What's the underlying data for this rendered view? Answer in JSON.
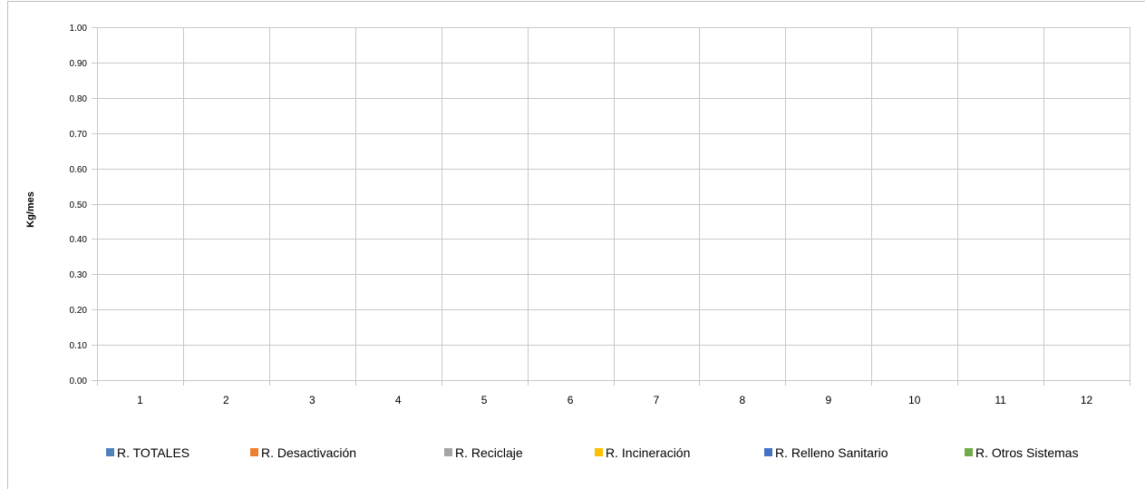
{
  "chart_data": {
    "type": "bar",
    "title": "",
    "xlabel": "",
    "ylabel": "Kg/mes",
    "ylim": [
      0,
      1.0
    ],
    "y_ticks": [
      "0.00",
      "0.10",
      "0.20",
      "0.30",
      "0.40",
      "0.50",
      "0.60",
      "0.70",
      "0.80",
      "0.90",
      "1.00"
    ],
    "categories": [
      "1",
      "2",
      "3",
      "4",
      "5",
      "6",
      "7",
      "8",
      "9",
      "10",
      "11",
      "12"
    ],
    "grid": true,
    "legend_position": "bottom",
    "series": [
      {
        "name": "R. TOTALES",
        "color": "#4f81bd",
        "values": [
          0,
          0,
          0,
          0,
          0,
          0,
          0,
          0,
          0,
          0,
          0,
          0
        ]
      },
      {
        "name": "R. Desactivación",
        "color": "#ed7d31",
        "values": [
          0,
          0,
          0,
          0,
          0,
          0,
          0,
          0,
          0,
          0,
          0,
          0
        ]
      },
      {
        "name": "R. Reciclaje",
        "color": "#a5a5a5",
        "values": [
          0,
          0,
          0,
          0,
          0,
          0,
          0,
          0,
          0,
          0,
          0,
          0
        ]
      },
      {
        "name": "R. Incineración",
        "color": "#ffc000",
        "values": [
          0,
          0,
          0,
          0,
          0,
          0,
          0,
          0,
          0,
          0,
          0,
          0
        ]
      },
      {
        "name": "R. Relleno Sanitario",
        "color": "#4472c4",
        "values": [
          0,
          0,
          0,
          0,
          0,
          0,
          0,
          0,
          0,
          0,
          0,
          0
        ]
      },
      {
        "name": "R. Otros Sistemas",
        "color": "#70ad47",
        "values": [
          0,
          0,
          0,
          0,
          0,
          0,
          0,
          0,
          0,
          0,
          0,
          0
        ]
      }
    ]
  }
}
